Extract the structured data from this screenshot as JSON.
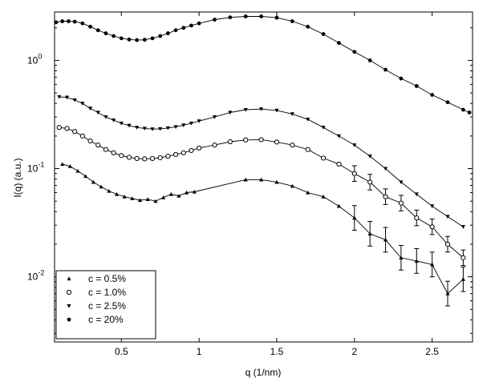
{
  "chart_data": {
    "type": "scatter",
    "xlabel": "q (1/nm)",
    "ylabel": "I(q) (a.u.)",
    "xlim": [
      0.07,
      2.76
    ],
    "ylim": [
      0.0025,
      2.8
    ],
    "yscale": "log",
    "grid": false,
    "legend_placement": "bottom-left",
    "x_ticks": [
      {
        "value": 0.5,
        "label": "0.5"
      },
      {
        "value": 1,
        "label": "1"
      },
      {
        "value": 1.5,
        "label": "1.5"
      },
      {
        "value": 2,
        "label": "2"
      },
      {
        "value": 2.5,
        "label": "2.5"
      }
    ],
    "y_ticks": [
      {
        "value": 0.01,
        "base": "10",
        "exp": "-2"
      },
      {
        "value": 0.1,
        "base": "10",
        "exp": "-1"
      },
      {
        "value": 1,
        "base": "10",
        "exp": "0"
      }
    ],
    "series": [
      {
        "name": "c = 0.5%",
        "marker": "triangle-up",
        "x": [
          0.12,
          0.17,
          0.22,
          0.27,
          0.32,
          0.37,
          0.42,
          0.47,
          0.52,
          0.57,
          0.62,
          0.67,
          0.72,
          0.77,
          0.82,
          0.87,
          0.92,
          0.97,
          1.3,
          1.4,
          1.5,
          1.6,
          1.7,
          1.8,
          1.9,
          2.0,
          2.1,
          2.2,
          2.3,
          2.4,
          2.5,
          2.6,
          2.7
        ],
        "y": [
          0.11,
          0.105,
          0.095,
          0.085,
          0.075,
          0.068,
          0.062,
          0.058,
          0.055,
          0.053,
          0.051,
          0.052,
          0.05,
          0.054,
          0.058,
          0.056,
          0.06,
          0.061,
          0.079,
          0.079,
          0.075,
          0.069,
          0.06,
          0.055,
          0.045,
          0.035,
          0.025,
          0.022,
          0.015,
          0.014,
          0.013,
          0.007,
          0.0095
        ]
      },
      {
        "name": "c = 1.0%",
        "marker": "circle-open",
        "x": [
          0.1,
          0.15,
          0.2,
          0.25,
          0.3,
          0.35,
          0.4,
          0.45,
          0.5,
          0.55,
          0.6,
          0.65,
          0.7,
          0.75,
          0.8,
          0.85,
          0.9,
          0.95,
          1.0,
          1.1,
          1.2,
          1.3,
          1.4,
          1.5,
          1.6,
          1.7,
          1.8,
          1.9,
          2.0,
          2.1,
          2.2,
          2.3,
          2.4,
          2.5,
          2.6,
          2.7
        ],
        "y": [
          0.24,
          0.235,
          0.22,
          0.2,
          0.18,
          0.165,
          0.15,
          0.14,
          0.132,
          0.127,
          0.124,
          0.123,
          0.124,
          0.126,
          0.13,
          0.135,
          0.14,
          0.147,
          0.155,
          0.165,
          0.177,
          0.184,
          0.185,
          0.176,
          0.165,
          0.15,
          0.125,
          0.11,
          0.09,
          0.075,
          0.055,
          0.048,
          0.035,
          0.029,
          0.02,
          0.015
        ]
      },
      {
        "name": "c = 2.5%",
        "marker": "triangle-down",
        "x": [
          0.1,
          0.15,
          0.2,
          0.25,
          0.3,
          0.35,
          0.4,
          0.45,
          0.5,
          0.55,
          0.6,
          0.65,
          0.7,
          0.75,
          0.8,
          0.85,
          0.9,
          0.95,
          1.0,
          1.1,
          1.2,
          1.3,
          1.4,
          1.5,
          1.6,
          1.7,
          1.8,
          1.9,
          2.0,
          2.1,
          2.2,
          2.3,
          2.4,
          2.5,
          2.6,
          2.7
        ],
        "y": [
          0.46,
          0.455,
          0.43,
          0.4,
          0.36,
          0.33,
          0.3,
          0.28,
          0.262,
          0.25,
          0.24,
          0.235,
          0.232,
          0.233,
          0.237,
          0.243,
          0.252,
          0.262,
          0.275,
          0.3,
          0.33,
          0.35,
          0.355,
          0.345,
          0.32,
          0.285,
          0.24,
          0.2,
          0.165,
          0.13,
          0.1,
          0.075,
          0.058,
          0.045,
          0.036,
          0.029
        ]
      },
      {
        "name": "c = 20%",
        "marker": "circle-filled",
        "x": [
          0.08,
          0.12,
          0.16,
          0.2,
          0.25,
          0.3,
          0.35,
          0.4,
          0.45,
          0.5,
          0.55,
          0.6,
          0.65,
          0.7,
          0.75,
          0.8,
          0.85,
          0.9,
          0.95,
          1.0,
          1.1,
          1.2,
          1.3,
          1.4,
          1.5,
          1.6,
          1.7,
          1.8,
          1.9,
          2.0,
          2.1,
          2.2,
          2.3,
          2.4,
          2.5,
          2.6,
          2.7,
          2.74
        ],
        "y": [
          2.25,
          2.3,
          2.3,
          2.28,
          2.2,
          2.05,
          1.9,
          1.78,
          1.68,
          1.6,
          1.56,
          1.54,
          1.55,
          1.6,
          1.68,
          1.78,
          1.9,
          2.0,
          2.1,
          2.2,
          2.38,
          2.5,
          2.55,
          2.55,
          2.48,
          2.3,
          2.05,
          1.75,
          1.45,
          1.2,
          1.0,
          0.82,
          0.68,
          0.58,
          0.48,
          0.41,
          0.35,
          0.33
        ]
      }
    ],
    "legend": [
      {
        "label": "c = 0.5%",
        "marker": "triangle-up"
      },
      {
        "label": "c = 1.0%",
        "marker": "circle-open"
      },
      {
        "label": "c = 2.5%",
        "marker": "triangle-down"
      },
      {
        "label": "c = 20%",
        "marker": "circle-filled"
      }
    ]
  }
}
